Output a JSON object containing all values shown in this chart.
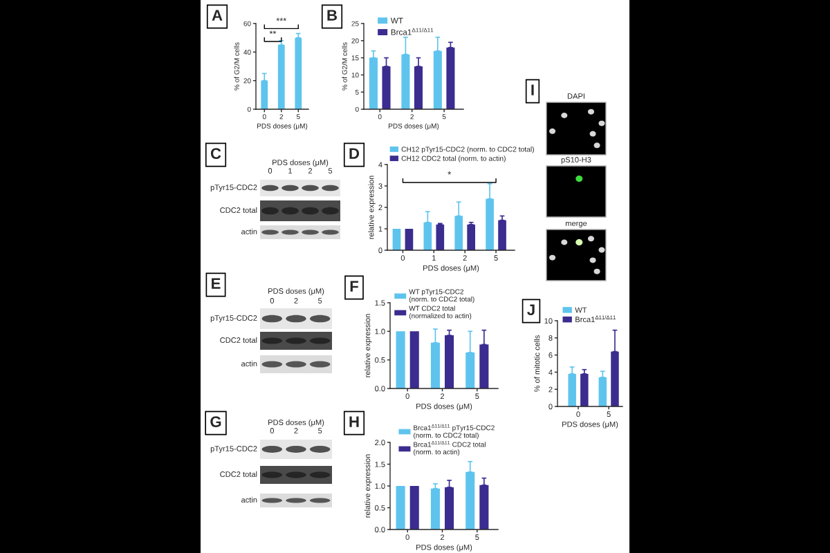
{
  "chart_data": [
    {
      "type": "bar",
      "title": "A",
      "xlabel": "PDS doses (μM)",
      "ylabel": "% of G2/M cells",
      "categories": [
        "0",
        "2",
        "5"
      ],
      "series": [
        {
          "color": "#5ec4ee",
          "values": [
            20,
            45,
            50
          ],
          "errors": [
            [
              20,
              25
            ],
            [
              45,
              48
            ],
            [
              50,
              53
            ]
          ]
        }
      ],
      "ylim": [
        0,
        60
      ],
      "yticks": [
        0,
        20,
        40,
        60
      ],
      "annotations": [
        "**",
        "***"
      ]
    },
    {
      "type": "bar",
      "title": "B",
      "xlabel": "PDS doses (μM)",
      "ylabel": "% of G2/M cells",
      "categories": [
        "0",
        "2",
        "5"
      ],
      "series": [
        {
          "name": "WT",
          "color": "#5ec4ee",
          "values": [
            15,
            16,
            17
          ],
          "errors": [
            [
              15,
              17
            ],
            [
              16,
              21
            ],
            [
              17,
              21
            ]
          ]
        },
        {
          "name": "Brca1$^{Δ11/Δ11}$",
          "color": "#3b2c8f",
          "values": [
            12.5,
            12.5,
            18
          ],
          "errors": [
            [
              12.5,
              15
            ],
            [
              12.5,
              15
            ],
            [
              18,
              19.5
            ]
          ]
        }
      ],
      "ylim": [
        0,
        25
      ],
      "yticks": [
        0,
        5,
        10,
        15,
        20,
        25
      ],
      "legend": "top left"
    },
    {
      "type": "other",
      "title": "C",
      "xlabel": "PDS doses (μM)",
      "categories": [
        "0",
        "1",
        "2",
        "5"
      ],
      "y_categories": [
        "pTyr15-CDC2",
        "CDC2 total",
        "actin"
      ]
    },
    {
      "type": "bar",
      "title": "D",
      "xlabel": "PDS doses (μM)",
      "ylabel": "relative expression",
      "categories": [
        "0",
        "1",
        "2",
        "5"
      ],
      "series": [
        {
          "name": "CH12 pTyr15-CDC2 (norm. to CDC2 total)",
          "color": "#5ec4ee",
          "values": [
            1,
            1.3,
            1.6,
            2.4
          ],
          "errors": [
            null,
            [
              1.3,
              1.8
            ],
            [
              1.6,
              2.25
            ],
            [
              2.4,
              3.1
            ]
          ]
        },
        {
          "name": "CH12 CDC2 total (norm. to actin)",
          "color": "#3b2c8f",
          "values": [
            1,
            1.2,
            1.2,
            1.4
          ],
          "errors": [
            null,
            [
              1.2,
              1.25
            ],
            [
              1.2,
              1.3
            ],
            [
              1.4,
              1.6
            ]
          ]
        }
      ],
      "ylim": [
        0,
        4
      ],
      "yticks": [
        0,
        1,
        2,
        3,
        4
      ],
      "annotations": [
        "*"
      ],
      "legend": "top"
    },
    {
      "type": "other",
      "title": "E",
      "xlabel": "PDS doses (μM)",
      "categories": [
        "0",
        "2",
        "5"
      ],
      "y_categories": [
        "pTyr15-CDC2",
        "CDC2 total",
        "actin"
      ]
    },
    {
      "type": "bar",
      "title": "F",
      "xlabel": "PDS doses (μM)",
      "ylabel": "relative expression",
      "categories": [
        "0",
        "2",
        "5"
      ],
      "series": [
        {
          "name": "WT pTyr15-CDC2\n(norm. to CDC2 total)",
          "color": "#5ec4ee",
          "values": [
            1,
            0.8,
            0.63
          ],
          "errors": [
            null,
            [
              0.8,
              1.04
            ],
            [
              0.63,
              1.0
            ]
          ]
        },
        {
          "name": "WT CDC2 total\n(normalized to actin)",
          "color": "#3b2c8f",
          "values": [
            1,
            0.93,
            0.77
          ],
          "errors": [
            null,
            [
              0.93,
              1.02
            ],
            [
              0.77,
              1.02
            ]
          ]
        }
      ],
      "ylim": [
        0,
        1.5
      ],
      "yticks": [
        {
          "value": 0,
          "label": "0.0"
        },
        {
          "value": 0.5,
          "label": "0.5"
        },
        {
          "value": 1,
          "label": "1.0"
        },
        {
          "value": 1.5,
          "label": "1.5"
        }
      ],
      "legend": "top"
    },
    {
      "type": "other",
      "title": "G",
      "xlabel": "PDS doses (μM)",
      "categories": [
        "0",
        "2",
        "5"
      ],
      "y_categories": [
        "pTyr15-CDC2",
        "CDC2 total",
        "actin"
      ]
    },
    {
      "type": "bar",
      "title": "H",
      "xlabel": "PDS doses (μM)",
      "ylabel": "relative expression",
      "categories": [
        "0",
        "2",
        "5"
      ],
      "series": [
        {
          "name": "Brca1$^{Δ11/Δ11}$ pTyr15-CDC2\n(norm. to CDC2 total)",
          "color": "#5ec4ee",
          "values": [
            1,
            0.94,
            1.32
          ],
          "errors": [
            null,
            [
              0.94,
              1.05
            ],
            [
              1.32,
              1.56
            ]
          ]
        },
        {
          "name": "Brca1$^{Δ11/Δ11}$ CDC2 total\n(norm. to actin)",
          "color": "#3b2c8f",
          "values": [
            1,
            0.97,
            1.02
          ],
          "errors": [
            null,
            [
              0.97,
              1.13
            ],
            [
              1.02,
              1.18
            ]
          ]
        }
      ],
      "ylim": [
        0,
        2
      ],
      "yticks": [
        {
          "value": 0,
          "label": "0.0"
        },
        {
          "value": 0.5,
          "label": "0.5"
        },
        {
          "value": 1,
          "label": "1.0"
        },
        {
          "value": 1.5,
          "label": "1.5"
        },
        {
          "value": 2,
          "label": "2.0"
        }
      ],
      "legend": "top"
    },
    {
      "type": "other",
      "title": "I",
      "annotations": [
        "DAPI",
        "pS10-H3",
        "merge"
      ]
    },
    {
      "type": "bar",
      "title": "J",
      "xlabel": "PDS doses (μM)",
      "ylabel": "% of mitotic cells",
      "categories": [
        "0",
        "5"
      ],
      "series": [
        {
          "name": "WT",
          "color": "#5ec4ee",
          "values": [
            3.8,
            3.4
          ],
          "errors": [
            [
              3.8,
              4.6
            ],
            [
              3.4,
              4.1
            ]
          ]
        },
        {
          "name": "Brca1$^{Δ11/Δ11}$",
          "color": "#3b2c8f",
          "values": [
            3.8,
            6.4
          ],
          "errors": [
            [
              3.8,
              4.3
            ],
            [
              6.4,
              8.9
            ]
          ]
        }
      ],
      "ylim": [
        0,
        10
      ],
      "yticks": [
        0,
        2,
        4,
        6,
        8,
        10
      ],
      "legend": "top"
    }
  ]
}
